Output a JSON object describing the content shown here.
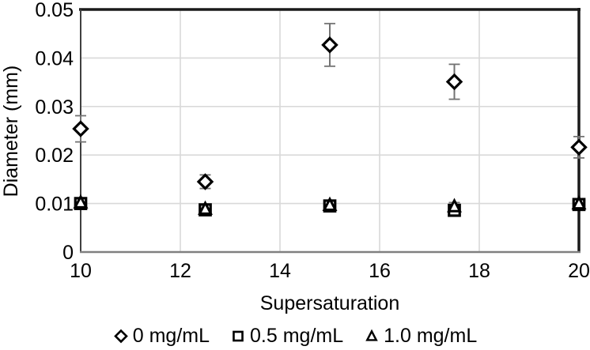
{
  "chart_data": {
    "type": "scatter",
    "title": "",
    "xlabel": "Supersaturation",
    "ylabel": "Diameter (mm)",
    "xlim": [
      10,
      20
    ],
    "ylim": [
      0,
      0.05
    ],
    "x_ticks": [
      10,
      12,
      14,
      16,
      18,
      20
    ],
    "y_ticks": [
      0,
      0.01,
      0.02,
      0.03,
      0.04,
      0.05
    ],
    "grid": true,
    "legend_position": "bottom",
    "series": [
      {
        "name": "0 mg/mL",
        "marker": "diamond",
        "x": [
          10,
          12.5,
          15,
          17.5,
          20
        ],
        "y": [
          0.0254,
          0.0145,
          0.0427,
          0.0351,
          0.0216
        ],
        "yerr": [
          0.0027,
          0.0014,
          0.0044,
          0.0036,
          0.0022
        ]
      },
      {
        "name": "0.5 mg/mL",
        "marker": "square",
        "x": [
          10,
          12.5,
          15,
          17.5,
          20
        ],
        "y": [
          0.01,
          0.0087,
          0.0095,
          0.0086,
          0.0098
        ],
        "yerr": [
          0.0008,
          0.0008,
          0.0008,
          0.0008,
          0.0008
        ]
      },
      {
        "name": "1.0 mg/mL",
        "marker": "triangle",
        "x": [
          10,
          12.5,
          15,
          17.5,
          20
        ],
        "y": [
          0.0102,
          0.0089,
          0.0097,
          0.0094,
          0.01
        ],
        "yerr": [
          0.0008,
          0.0008,
          0.0008,
          0.0008,
          0.0008
        ]
      }
    ],
    "colors": {
      "marker": "#000000",
      "marker_fill": "#ffffff",
      "error_bar": "#737373",
      "gridline": "#d9d9d9",
      "axis_left": "#404040",
      "axis_bottom": "#808080",
      "border": "#1a1a1a",
      "text": "#000000"
    }
  }
}
